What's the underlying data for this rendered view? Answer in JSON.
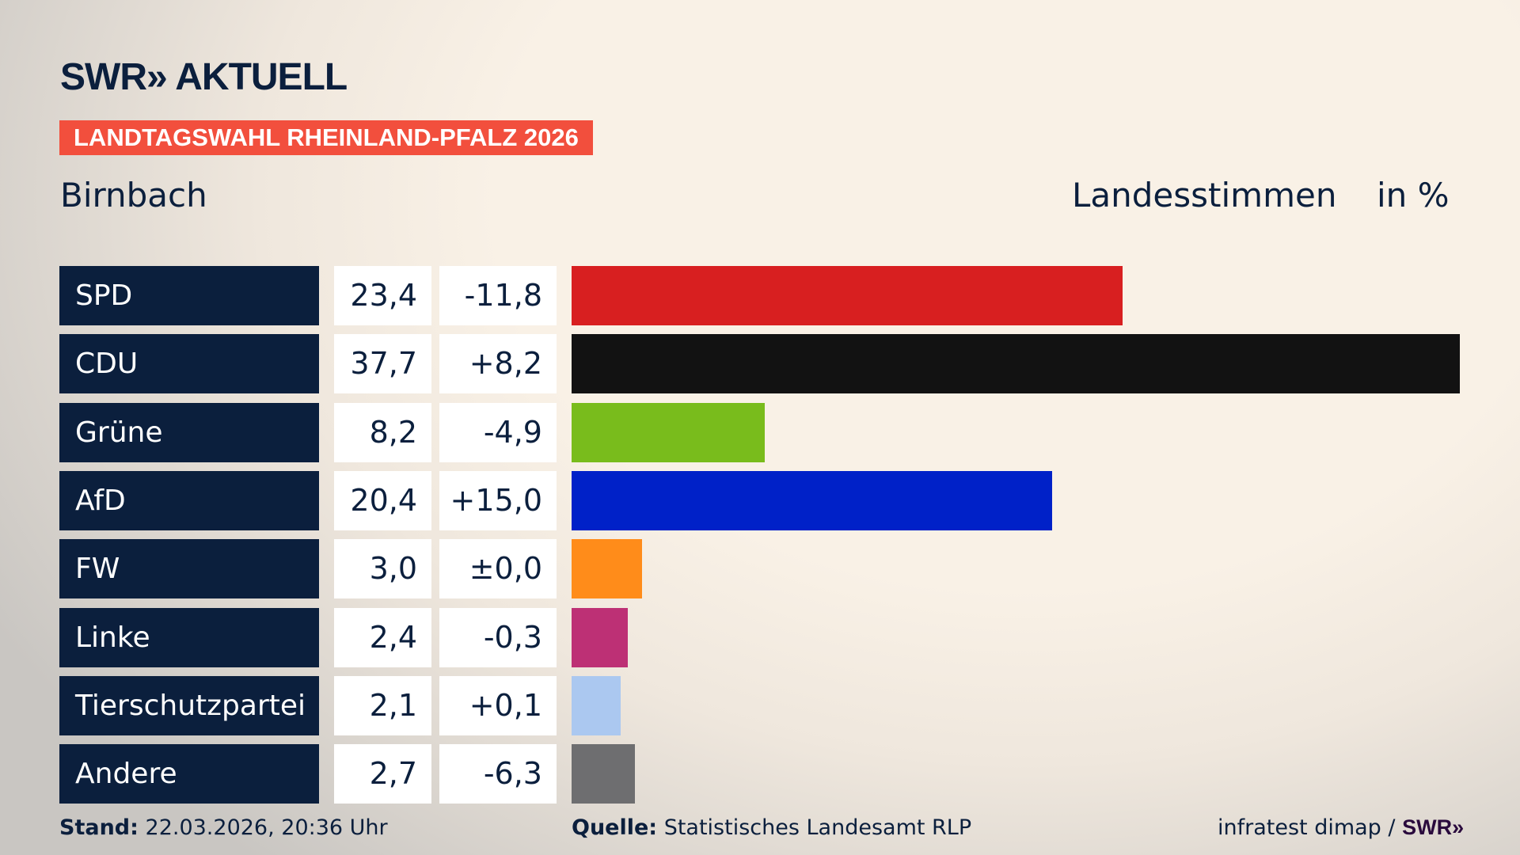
{
  "header": {
    "logo": "SWR» AKTUELL",
    "banner": "LANDTAGSWAHL RHEINLAND-PFALZ 2026",
    "place": "Birnbach",
    "measure": "Landesstimmen",
    "unit": "in %"
  },
  "footer": {
    "stand_label": "Stand:",
    "stand_value": "22.03.2026, 20:36 Uhr",
    "source_label": "Quelle:",
    "source_value": "Statistisches Landesamt RLP",
    "credit": "infratest dimap /",
    "credit_logo": "SWR»"
  },
  "chart_data": {
    "type": "bar",
    "orientation": "horizontal",
    "categories": [
      "SPD",
      "CDU",
      "Grüne",
      "AfD",
      "FW",
      "Linke",
      "Tierschutzpartei",
      "Andere"
    ],
    "values": [
      23.4,
      37.7,
      8.2,
      20.4,
      3.0,
      2.4,
      2.1,
      2.7
    ],
    "value_labels": [
      "23,4",
      "37,7",
      "8,2",
      "20,4",
      "3,0",
      "2,4",
      "2,1",
      "2,7"
    ],
    "changes": [
      "-11,8",
      "+8,2",
      "-4,9",
      "+15,0",
      "±0,0",
      "-0,3",
      "+0,1",
      "-6,3"
    ],
    "colors": [
      "#d81f20",
      "#121212",
      "#79bc1c",
      "#0021c8",
      "#ff8c1a",
      "#bd3075",
      "#abc8f0",
      "#6e6e70"
    ],
    "ylabel": "Landesstimmen",
    "unit": "in %"
  }
}
